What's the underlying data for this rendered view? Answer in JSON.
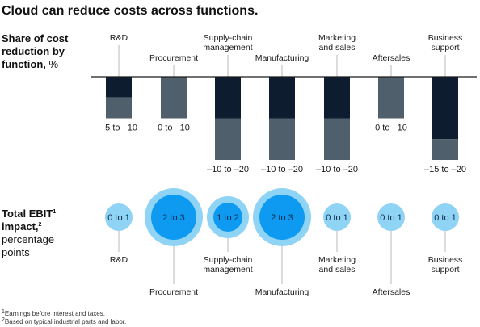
{
  "title": "Cloud can reduce costs across functions.",
  "section1": {
    "line1": "Share of cost",
    "line2": "reduction by",
    "line3_bold": "function,",
    "line3_unit": " %"
  },
  "section2": {
    "line1": "Total EBIT",
    "sup1": "1",
    "line2": "impact,",
    "sup2": "2",
    "line3": "percentage",
    "line4": "points"
  },
  "footnotes": [
    "Earnings before interest and taxes.",
    "Based on typical industrial parts and labor."
  ],
  "footnote_marks": [
    "1",
    "2"
  ],
  "colors": {
    "dark": "#0d1d2f",
    "gray": "#4f5f6c",
    "bubble_small": "#8fd3f5",
    "bubble_big_outer": "#8fd3f5",
    "bubble_big_inner": "#0d9af0",
    "axis": "#1a1a1a",
    "stem": "#b9b9b9"
  },
  "chart_data": [
    {
      "type": "bar",
      "title": "Share of cost reduction by function, %",
      "categories": [
        [
          "R&D"
        ],
        [
          "Procurement"
        ],
        [
          "Supply-chain",
          "management"
        ],
        [
          "Manufacturing"
        ],
        [
          "Marketing",
          "and sales"
        ],
        [
          "Aftersales"
        ],
        [
          "Business",
          "support"
        ]
      ],
      "ranges": [
        [
          -5,
          -10
        ],
        [
          0,
          -10
        ],
        [
          -10,
          -20
        ],
        [
          -10,
          -20
        ],
        [
          -10,
          -20
        ],
        [
          0,
          -10
        ],
        [
          -15,
          -20
        ]
      ],
      "range_labels": [
        "–5 to –10",
        "0 to –10",
        "–10 to –20",
        "–10 to –20",
        "–10 to –20",
        "0 to –10",
        "–15 to –20"
      ],
      "series": [
        {
          "name": "",
          "values": [
            -5,
            0,
            -10,
            -10,
            -10,
            0,
            -15
          ]
        },
        {
          "name": "",
          "values": [
            -10,
            -10,
            -20,
            -20,
            -20,
            -10,
            -20
          ]
        }
      ]
    },
    {
      "type": "scatter",
      "title": "Total EBIT impact, percentage points",
      "categories": [
        [
          "R&D"
        ],
        [
          "Procurement"
        ],
        [
          "Supply-chain",
          "management"
        ],
        [
          "Manufacturing"
        ],
        [
          "Marketing",
          "and sales"
        ],
        [
          "Aftersales"
        ],
        [
          "Business",
          "support"
        ]
      ],
      "labels": [
        "0 to 1",
        "2 to 3",
        "1 to 2",
        "2 to 3",
        "0 to 1",
        "0 to 1",
        "0 to 1"
      ],
      "ranges": [
        [
          0,
          1
        ],
        [
          2,
          3
        ],
        [
          1,
          2
        ],
        [
          2,
          3
        ],
        [
          0,
          1
        ],
        [
          0,
          1
        ],
        [
          0,
          1
        ]
      ]
    }
  ]
}
